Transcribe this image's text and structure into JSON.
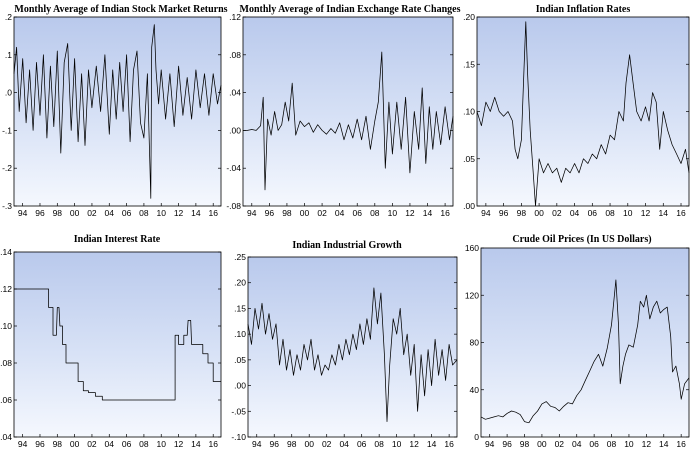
{
  "chart_data": [
    {
      "type": "line",
      "title": "Monthly Average of Indian Stock Market Returns",
      "ylim": [
        -0.3,
        0.2
      ],
      "y_ticks": [
        0.2,
        0.1,
        0.0,
        -0.1,
        -0.2,
        -0.3
      ],
      "y_tick_labels": [
        ".2",
        ".1",
        ".0",
        "-.1",
        "-.2",
        "-.3"
      ],
      "x_range": [
        1993.0,
        2016.9
      ],
      "x_ticks": [
        1994,
        1996,
        1998,
        2000,
        2002,
        2004,
        2006,
        2008,
        2010,
        2012,
        2014,
        2016
      ],
      "x_tick_labels": [
        "94",
        "96",
        "98",
        "00",
        "02",
        "04",
        "06",
        "08",
        "10",
        "12",
        "14",
        "16"
      ],
      "grid": false,
      "series": [
        {
          "x": [
            1993.0,
            1993.3,
            1993.6,
            1994.0,
            1994.4,
            1994.8,
            1995.2,
            1995.6,
            1996.0,
            1996.4,
            1996.8,
            1997.2,
            1997.6,
            1998.0,
            1998.4,
            1998.8,
            1999.2,
            1999.6,
            2000.0,
            2000.4,
            2000.8,
            2001.2,
            2001.6,
            2002.0,
            2002.5,
            2003.0,
            2003.5,
            2004.0,
            2004.4,
            2004.8,
            2005.2,
            2005.6,
            2006.0,
            2006.4,
            2006.8,
            2007.2,
            2007.6,
            2008.0,
            2008.4,
            2008.8,
            2008.9,
            2009.2,
            2009.4,
            2009.7,
            2010.0,
            2010.5,
            2011.0,
            2011.5,
            2012.0,
            2012.5,
            2013.0,
            2013.5,
            2014.0,
            2014.5,
            2015.0,
            2015.5,
            2016.0,
            2016.5,
            2016.9
          ],
          "values": [
            0.05,
            0.12,
            -0.05,
            0.09,
            -0.08,
            0.06,
            -0.1,
            0.08,
            -0.06,
            0.1,
            -0.12,
            0.07,
            -0.09,
            0.11,
            -0.16,
            0.08,
            0.13,
            -0.1,
            0.09,
            -0.13,
            0.05,
            -0.14,
            0.06,
            -0.04,
            0.07,
            -0.05,
            0.1,
            -0.11,
            0.06,
            -0.07,
            0.08,
            -0.05,
            0.1,
            -0.13,
            0.06,
            0.11,
            -0.08,
            -0.12,
            0.05,
            -0.28,
            0.12,
            0.18,
            0.06,
            -0.03,
            0.06,
            -0.07,
            0.05,
            -0.09,
            0.07,
            -0.06,
            0.04,
            -0.07,
            0.06,
            -0.04,
            0.05,
            -0.06,
            0.05,
            -0.03,
            0.02
          ]
        }
      ]
    },
    {
      "type": "line",
      "title": "Monthly Average of Indian Exchange Rate Changes",
      "ylim": [
        -0.08,
        0.12
      ],
      "y_ticks": [
        0.12,
        0.08,
        0.04,
        0.0,
        -0.04,
        -0.08
      ],
      "y_tick_labels": [
        ".12",
        ".08",
        ".04",
        ".00",
        "-.04",
        "-.08"
      ],
      "x_range": [
        1993.0,
        2016.9
      ],
      "x_ticks": [
        1994,
        1996,
        1998,
        2000,
        2002,
        2004,
        2006,
        2008,
        2010,
        2012,
        2014,
        2016
      ],
      "x_tick_labels": [
        "94",
        "96",
        "98",
        "00",
        "02",
        "04",
        "06",
        "08",
        "10",
        "12",
        "14",
        "16"
      ],
      "grid": false,
      "series": [
        {
          "x": [
            1993.0,
            1993.5,
            1994.0,
            1994.5,
            1995.0,
            1995.3,
            1995.5,
            1995.8,
            1996.2,
            1996.6,
            1997.0,
            1997.4,
            1997.8,
            1998.2,
            1998.6,
            1999.0,
            1999.5,
            2000.0,
            2000.5,
            2001.0,
            2001.5,
            2002.0,
            2002.5,
            2003.0,
            2003.5,
            2004.0,
            2004.5,
            2005.0,
            2005.5,
            2006.0,
            2006.5,
            2007.0,
            2007.5,
            2008.0,
            2008.4,
            2008.8,
            2009.2,
            2009.6,
            2010.0,
            2010.5,
            2011.0,
            2011.5,
            2012.0,
            2012.5,
            2013.0,
            2013.4,
            2013.8,
            2014.2,
            2014.6,
            2015.0,
            2015.5,
            2016.0,
            2016.5,
            2016.9
          ],
          "values": [
            0.0,
            0.0,
            0.001,
            0.0,
            0.005,
            0.035,
            -0.063,
            0.012,
            -0.005,
            0.02,
            0.0,
            0.006,
            0.03,
            0.01,
            0.05,
            -0.005,
            0.01,
            0.004,
            0.008,
            -0.002,
            0.006,
            0.0,
            -0.004,
            0.002,
            -0.003,
            0.008,
            -0.01,
            0.006,
            -0.008,
            0.012,
            -0.01,
            0.015,
            -0.02,
            0.01,
            0.03,
            0.083,
            -0.04,
            0.03,
            -0.025,
            0.03,
            -0.02,
            0.035,
            -0.045,
            0.02,
            -0.02,
            0.045,
            -0.035,
            0.025,
            -0.02,
            0.02,
            -0.015,
            0.025,
            -0.01,
            0.015
          ]
        }
      ]
    },
    {
      "type": "line",
      "title": "Indian Inflation Rates",
      "ylim": [
        0.0,
        0.2
      ],
      "y_ticks": [
        0.2,
        0.15,
        0.1,
        0.05,
        0.0
      ],
      "y_tick_labels": [
        ".20",
        ".15",
        ".10",
        ".05",
        ".00"
      ],
      "x_range": [
        1993.0,
        2016.9
      ],
      "x_ticks": [
        1994,
        1996,
        1998,
        2000,
        2002,
        2004,
        2006,
        2008,
        2010,
        2012,
        2014,
        2016
      ],
      "x_tick_labels": [
        "94",
        "96",
        "98",
        "00",
        "02",
        "04",
        "06",
        "08",
        "10",
        "12",
        "14",
        "16"
      ],
      "grid": false,
      "series": [
        {
          "x": [
            1993.0,
            1993.5,
            1994.0,
            1994.5,
            1995.0,
            1995.5,
            1996.0,
            1996.5,
            1997.0,
            1997.3,
            1997.6,
            1998.0,
            1998.3,
            1998.5,
            1998.7,
            1999.0,
            1999.3,
            1999.6,
            2000.0,
            2000.5,
            2001.0,
            2001.5,
            2002.0,
            2002.5,
            2003.0,
            2003.5,
            2004.0,
            2004.5,
            2005.0,
            2005.5,
            2006.0,
            2006.5,
            2007.0,
            2007.5,
            2008.0,
            2008.5,
            2009.0,
            2009.5,
            2009.8,
            2010.2,
            2010.6,
            2011.0,
            2011.5,
            2012.0,
            2012.4,
            2012.8,
            2013.2,
            2013.6,
            2014.0,
            2014.5,
            2015.0,
            2015.5,
            2016.0,
            2016.5,
            2016.9
          ],
          "values": [
            0.1,
            0.085,
            0.11,
            0.1,
            0.115,
            0.1,
            0.095,
            0.1,
            0.09,
            0.06,
            0.05,
            0.07,
            0.145,
            0.195,
            0.14,
            0.08,
            0.04,
            0.0,
            0.05,
            0.035,
            0.045,
            0.035,
            0.04,
            0.025,
            0.04,
            0.035,
            0.045,
            0.035,
            0.05,
            0.045,
            0.055,
            0.05,
            0.065,
            0.055,
            0.075,
            0.07,
            0.1,
            0.09,
            0.13,
            0.16,
            0.13,
            0.1,
            0.09,
            0.105,
            0.09,
            0.12,
            0.11,
            0.06,
            0.1,
            0.08,
            0.065,
            0.055,
            0.045,
            0.06,
            0.035
          ]
        }
      ]
    },
    {
      "type": "line",
      "title": "Indian Interest Rate",
      "ylim": [
        0.04,
        0.14
      ],
      "y_ticks": [
        0.14,
        0.12,
        0.1,
        0.08,
        0.06,
        0.04
      ],
      "y_tick_labels": [
        ".14",
        ".12",
        ".10",
        ".08",
        ".06",
        ".04"
      ],
      "x_range": [
        1993.0,
        2016.9
      ],
      "x_ticks": [
        1994,
        1996,
        1998,
        2000,
        2002,
        2004,
        2006,
        2008,
        2010,
        2012,
        2014,
        2016
      ],
      "x_tick_labels": [
        "94",
        "96",
        "98",
        "00",
        "02",
        "04",
        "06",
        "08",
        "10",
        "12",
        "14",
        "16"
      ],
      "grid": false,
      "series": [
        {
          "x": [
            1993.0,
            1997.0,
            1997.0,
            1997.5,
            1997.5,
            1997.9,
            1998.0,
            1998.2,
            1998.3,
            1998.6,
            1998.6,
            1999.0,
            1999.0,
            2000.4,
            2000.4,
            2001.0,
            2001.0,
            2001.6,
            2001.6,
            2002.4,
            2002.4,
            2003.2,
            2003.2,
            2011.6,
            2011.6,
            2012.0,
            2012.0,
            2012.6,
            2012.6,
            2013.0,
            2013.1,
            2013.4,
            2013.5,
            2014.8,
            2014.8,
            2015.4,
            2015.4,
            2016.0,
            2016.0,
            2016.9
          ],
          "values": [
            0.12,
            0.12,
            0.11,
            0.11,
            0.095,
            0.095,
            0.11,
            0.11,
            0.1,
            0.1,
            0.09,
            0.09,
            0.08,
            0.08,
            0.07,
            0.07,
            0.065,
            0.065,
            0.064,
            0.064,
            0.062,
            0.062,
            0.06,
            0.06,
            0.095,
            0.095,
            0.09,
            0.09,
            0.095,
            0.095,
            0.103,
            0.103,
            0.09,
            0.09,
            0.085,
            0.085,
            0.08,
            0.08,
            0.07,
            0.07
          ]
        }
      ]
    },
    {
      "type": "line",
      "title": "Indian Industrial Growth",
      "ylim": [
        -0.1,
        0.25
      ],
      "y_ticks": [
        0.25,
        0.2,
        0.15,
        0.1,
        0.05,
        0.0,
        -0.05,
        -0.1
      ],
      "y_tick_labels": [
        ".25",
        ".20",
        ".15",
        ".10",
        ".05",
        ".00",
        "-.05",
        "-.10"
      ],
      "x_range": [
        1993.0,
        2016.9
      ],
      "x_ticks": [
        1994,
        1996,
        1998,
        2000,
        2002,
        2004,
        2006,
        2008,
        2010,
        2012,
        2014,
        2016
      ],
      "x_tick_labels": [
        "94",
        "96",
        "98",
        "00",
        "02",
        "04",
        "06",
        "08",
        "10",
        "12",
        "14",
        "16"
      ],
      "grid": false,
      "series": [
        {
          "x": [
            1993.0,
            1993.4,
            1993.8,
            1994.2,
            1994.6,
            1995.0,
            1995.4,
            1995.8,
            1996.2,
            1996.6,
            1997.0,
            1997.4,
            1997.8,
            1998.2,
            1998.6,
            1999.0,
            1999.4,
            1999.8,
            2000.2,
            2000.6,
            2001.0,
            2001.4,
            2001.8,
            2002.2,
            2002.6,
            2003.0,
            2003.4,
            2003.8,
            2004.2,
            2004.6,
            2005.0,
            2005.4,
            2005.8,
            2006.2,
            2006.6,
            2007.0,
            2007.4,
            2007.8,
            2008.2,
            2008.6,
            2008.9,
            2009.2,
            2009.6,
            2010.0,
            2010.4,
            2010.8,
            2011.2,
            2011.6,
            2012.0,
            2012.4,
            2012.8,
            2013.2,
            2013.6,
            2014.0,
            2014.4,
            2014.8,
            2015.2,
            2015.6,
            2016.0,
            2016.4,
            2016.9
          ],
          "values": [
            0.12,
            0.08,
            0.15,
            0.11,
            0.16,
            0.1,
            0.14,
            0.09,
            0.12,
            0.04,
            0.09,
            0.03,
            0.07,
            0.02,
            0.06,
            0.03,
            0.08,
            0.05,
            0.09,
            0.03,
            0.06,
            0.02,
            0.04,
            0.03,
            0.06,
            0.04,
            0.08,
            0.05,
            0.09,
            0.06,
            0.1,
            0.07,
            0.12,
            0.08,
            0.13,
            0.09,
            0.19,
            0.12,
            0.18,
            0.06,
            -0.07,
            0.04,
            0.13,
            0.1,
            0.15,
            0.06,
            0.1,
            0.02,
            0.08,
            -0.05,
            0.06,
            -0.02,
            0.07,
            0.0,
            0.09,
            0.02,
            0.07,
            0.01,
            0.08,
            0.04,
            0.05
          ]
        }
      ]
    },
    {
      "type": "line",
      "title": "Crude Oil Prices (In US Dollars)",
      "ylim": [
        0,
        160
      ],
      "y_ticks": [
        160,
        120,
        80,
        40,
        0
      ],
      "y_tick_labels": [
        "160",
        "120",
        "80",
        "40",
        "0"
      ],
      "x_range": [
        1993.0,
        2016.9
      ],
      "x_ticks": [
        1994,
        1996,
        1998,
        2000,
        2002,
        2004,
        2006,
        2008,
        2010,
        2012,
        2014,
        2016
      ],
      "x_tick_labels": [
        "94",
        "96",
        "98",
        "00",
        "02",
        "04",
        "06",
        "08",
        "10",
        "12",
        "14",
        "16"
      ],
      "grid": false,
      "series": [
        {
          "x": [
            1993.0,
            1993.5,
            1994.0,
            1994.5,
            1995.0,
            1995.5,
            1996.0,
            1996.5,
            1997.0,
            1997.5,
            1998.0,
            1998.5,
            1999.0,
            1999.5,
            2000.0,
            2000.5,
            2001.0,
            2001.5,
            2002.0,
            2002.5,
            2003.0,
            2003.5,
            2004.0,
            2004.5,
            2005.0,
            2005.5,
            2006.0,
            2006.5,
            2007.0,
            2007.5,
            2008.0,
            2008.5,
            2008.8,
            2009.0,
            2009.3,
            2009.6,
            2010.0,
            2010.5,
            2011.0,
            2011.3,
            2011.7,
            2012.0,
            2012.4,
            2012.8,
            2013.2,
            2013.6,
            2014.0,
            2014.4,
            2014.8,
            2015.0,
            2015.4,
            2015.8,
            2016.0,
            2016.4,
            2016.9
          ],
          "values": [
            17,
            15,
            16,
            17,
            18,
            17,
            20,
            22,
            21,
            19,
            13,
            12,
            18,
            22,
            28,
            30,
            26,
            25,
            22,
            26,
            29,
            28,
            35,
            40,
            48,
            56,
            64,
            70,
            60,
            75,
            95,
            133,
            95,
            45,
            60,
            70,
            78,
            76,
            95,
            115,
            110,
            120,
            100,
            110,
            115,
            105,
            108,
            110,
            85,
            55,
            60,
            45,
            32,
            45,
            50
          ]
        }
      ]
    }
  ]
}
